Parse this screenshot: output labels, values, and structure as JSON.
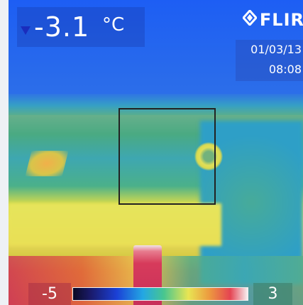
{
  "readout": {
    "temperature": "-3.1",
    "unit": "°C"
  },
  "brand": {
    "name": "FLIR",
    "icon": "flir-logo-icon"
  },
  "datetime": {
    "date": "01/03/13",
    "time": "08:08"
  },
  "scale": {
    "min_label": "-5",
    "max_label": "3",
    "colors": [
      "#0a0a22",
      "#1a1a6a",
      "#1b40d6",
      "#23a7e3",
      "#48c68f",
      "#e8e553",
      "#ec9a3f",
      "#e54452",
      "#f6f0f2"
    ]
  },
  "overlay": {
    "marker_icon": "triangle-down-icon",
    "accent": "#1a2dbd"
  }
}
